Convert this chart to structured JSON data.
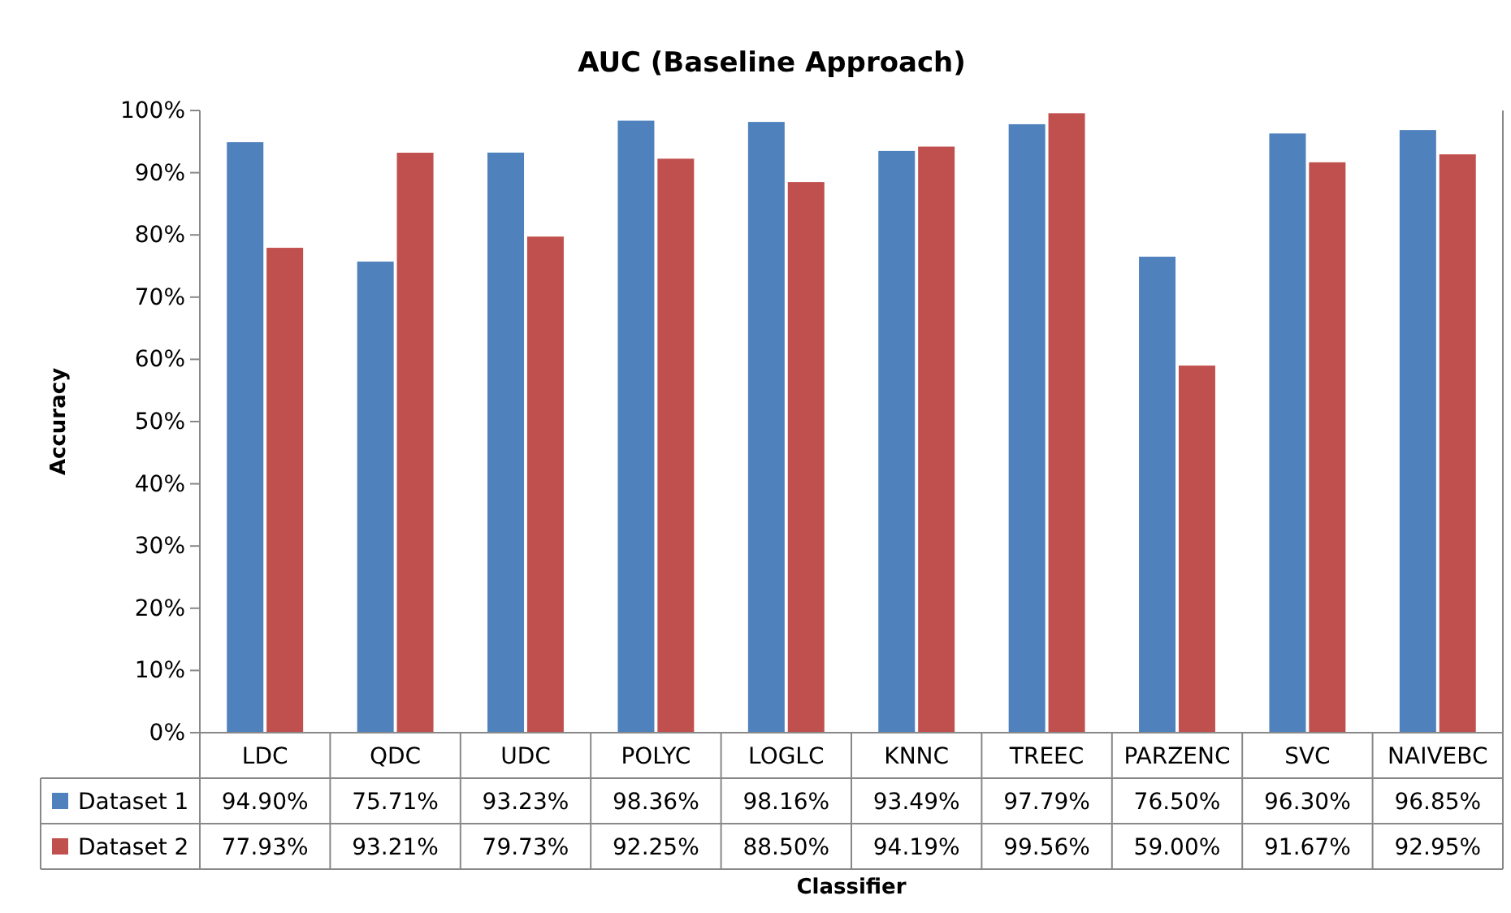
{
  "chart_data": {
    "type": "bar",
    "title": "AUC (Baseline Approach)",
    "xlabel": "Classifier",
    "ylabel": "Accuracy",
    "categories": [
      "LDC",
      "QDC",
      "UDC",
      "POLYC",
      "LOGLC",
      "KNNC",
      "TREEC",
      "PARZENC",
      "SVC",
      "NAIVEBC"
    ],
    "series": [
      {
        "name": "Dataset 1",
        "color": "#4f81bd",
        "values": [
          94.9,
          75.71,
          93.23,
          98.36,
          98.16,
          93.49,
          97.79,
          76.5,
          96.3,
          96.85
        ],
        "value_labels": [
          "94.90%",
          "75.71%",
          "93.23%",
          "98.36%",
          "98.16%",
          "93.49%",
          "97.79%",
          "76.50%",
          "96.30%",
          "96.85%"
        ]
      },
      {
        "name": "Dataset 2",
        "color": "#c0504d",
        "values": [
          77.93,
          93.21,
          79.73,
          92.25,
          88.5,
          94.19,
          99.56,
          59.0,
          91.67,
          92.95
        ],
        "value_labels": [
          "77.93%",
          "93.21%",
          "79.73%",
          "92.25%",
          "88.50%",
          "94.19%",
          "99.56%",
          "59.00%",
          "91.67%",
          "92.95%"
        ]
      }
    ],
    "legend": "bottom",
    "ylim": [
      0,
      100
    ],
    "yticks": [
      {
        "value": 0,
        "label": "0%"
      },
      {
        "value": 10,
        "label": "10%"
      },
      {
        "value": 20,
        "label": "20%"
      },
      {
        "value": 30,
        "label": "30%"
      },
      {
        "value": 40,
        "label": "40%"
      },
      {
        "value": 50,
        "label": "50%"
      },
      {
        "value": 60,
        "label": "60%"
      },
      {
        "value": 70,
        "label": "70%"
      },
      {
        "value": 80,
        "label": "80%"
      },
      {
        "value": 90,
        "label": "90%"
      },
      {
        "value": 100,
        "label": "100%"
      }
    ]
  }
}
